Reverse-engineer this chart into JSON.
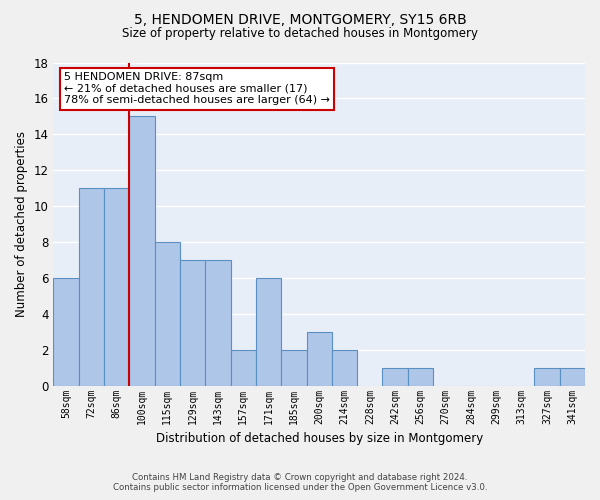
{
  "title1": "5, HENDOMEN DRIVE, MONTGOMERY, SY15 6RB",
  "title2": "Size of property relative to detached houses in Montgomery",
  "xlabel": "Distribution of detached houses by size in Montgomery",
  "ylabel": "Number of detached properties",
  "categories": [
    "58sqm",
    "72sqm",
    "86sqm",
    "100sqm",
    "115sqm",
    "129sqm",
    "143sqm",
    "157sqm",
    "171sqm",
    "185sqm",
    "200sqm",
    "214sqm",
    "228sqm",
    "242sqm",
    "256sqm",
    "270sqm",
    "284sqm",
    "299sqm",
    "313sqm",
    "327sqm",
    "341sqm"
  ],
  "values": [
    6,
    11,
    11,
    15,
    8,
    7,
    7,
    2,
    6,
    2,
    3,
    2,
    0,
    1,
    1,
    0,
    0,
    0,
    0,
    1,
    1
  ],
  "bar_color": "#aec6e8",
  "bar_edge_color": "#5a8fc2",
  "background_color": "#e8eef8",
  "grid_color": "#ffffff",
  "vline_x": 2.5,
  "vline_color": "#cc0000",
  "annotation_line1": "5 HENDOMEN DRIVE: 87sqm",
  "annotation_line2": "← 21% of detached houses are smaller (17)",
  "annotation_line3": "78% of semi-detached houses are larger (64) →",
  "annotation_box_color": "#cc0000",
  "ylim": [
    0,
    18
  ],
  "yticks": [
    0,
    2,
    4,
    6,
    8,
    10,
    12,
    14,
    16,
    18
  ],
  "footer_line1": "Contains HM Land Registry data © Crown copyright and database right 2024.",
  "footer_line2": "Contains public sector information licensed under the Open Government Licence v3.0.",
  "fig_bg": "#f0f0f0"
}
